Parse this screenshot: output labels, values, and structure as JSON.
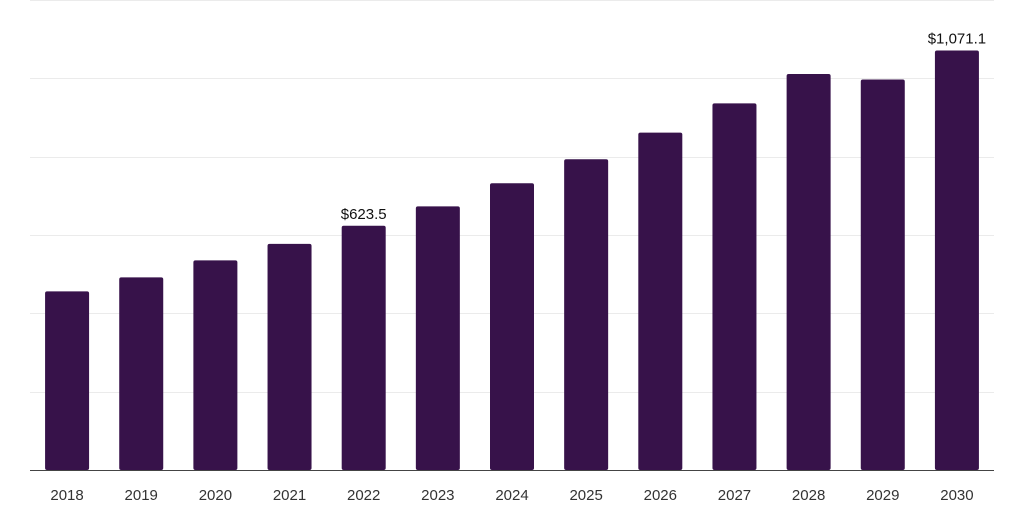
{
  "chart_data": {
    "type": "bar",
    "categories": [
      "2018",
      "2019",
      "2020",
      "2021",
      "2022",
      "2023",
      "2024",
      "2025",
      "2026",
      "2027",
      "2028",
      "2029",
      "2030"
    ],
    "values": [
      456.0,
      491.8,
      535.2,
      577.3,
      623.5,
      673.2,
      732.2,
      793.4,
      861.5,
      936.0,
      1011.0,
      997.0,
      1071.1
    ],
    "data_labels": [
      {
        "category": "2022",
        "text": "$623.5"
      },
      {
        "category": "2030",
        "text": "$1,071.1"
      }
    ],
    "ylim": [
      0,
      1200
    ],
    "grid": true,
    "bar_color": "#37124a",
    "axis_color": "#444444",
    "grid_color": "#ebebeb",
    "title": "",
    "xlabel": "",
    "ylabel": ""
  }
}
